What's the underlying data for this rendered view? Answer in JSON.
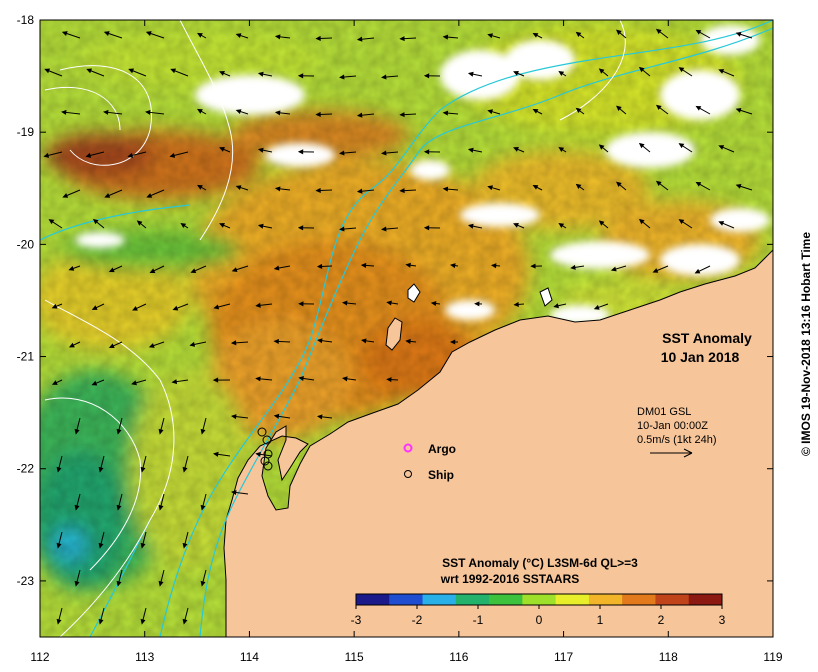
{
  "title": {
    "line1": "SST Anomaly",
    "line2": "10 Jan 2018"
  },
  "info_box": {
    "line1": "DM01 GSL",
    "line2": "10-Jan 00:00Z",
    "line3": "0.5m/s (1kt 24h)"
  },
  "legend": {
    "argo_label": "Argo",
    "ship_label": "Ship"
  },
  "colorbar": {
    "title_line1": "SST Anomaly (°C) L3SM-6d QL>=3",
    "title_line2": "wrt 1992-2016 SSTAARS",
    "ticks": [
      "-3",
      "-2",
      "-1",
      "0",
      "1",
      "2",
      "3"
    ],
    "range": [
      -3,
      3
    ],
    "colors": [
      "#1a1a8a",
      "#1f4fd0",
      "#2ab0e8",
      "#22b26b",
      "#3cc23c",
      "#9ee02a",
      "#e8ef2a",
      "#f2b52a",
      "#e27a1c",
      "#c0431a",
      "#8c1a12"
    ]
  },
  "credit": "© IMOS 19-Nov-2018 13:16 Hobart Time",
  "axes": {
    "x_ticks": [
      "112",
      "113",
      "114",
      "115",
      "116",
      "117",
      "118",
      "119"
    ],
    "y_ticks": [
      "-18",
      "-19",
      "-20",
      "-21",
      "-22",
      "-23"
    ],
    "lon_range": [
      112,
      119
    ],
    "lat_range": [
      -18,
      -23.5
    ]
  },
  "colors": {
    "land": "#f7c59a",
    "missing": "#ffffff",
    "current_arrow": "#000000",
    "isobath": "#28c8d8",
    "contour": "#ffffff",
    "argo_marker": "#ff33ff"
  }
}
